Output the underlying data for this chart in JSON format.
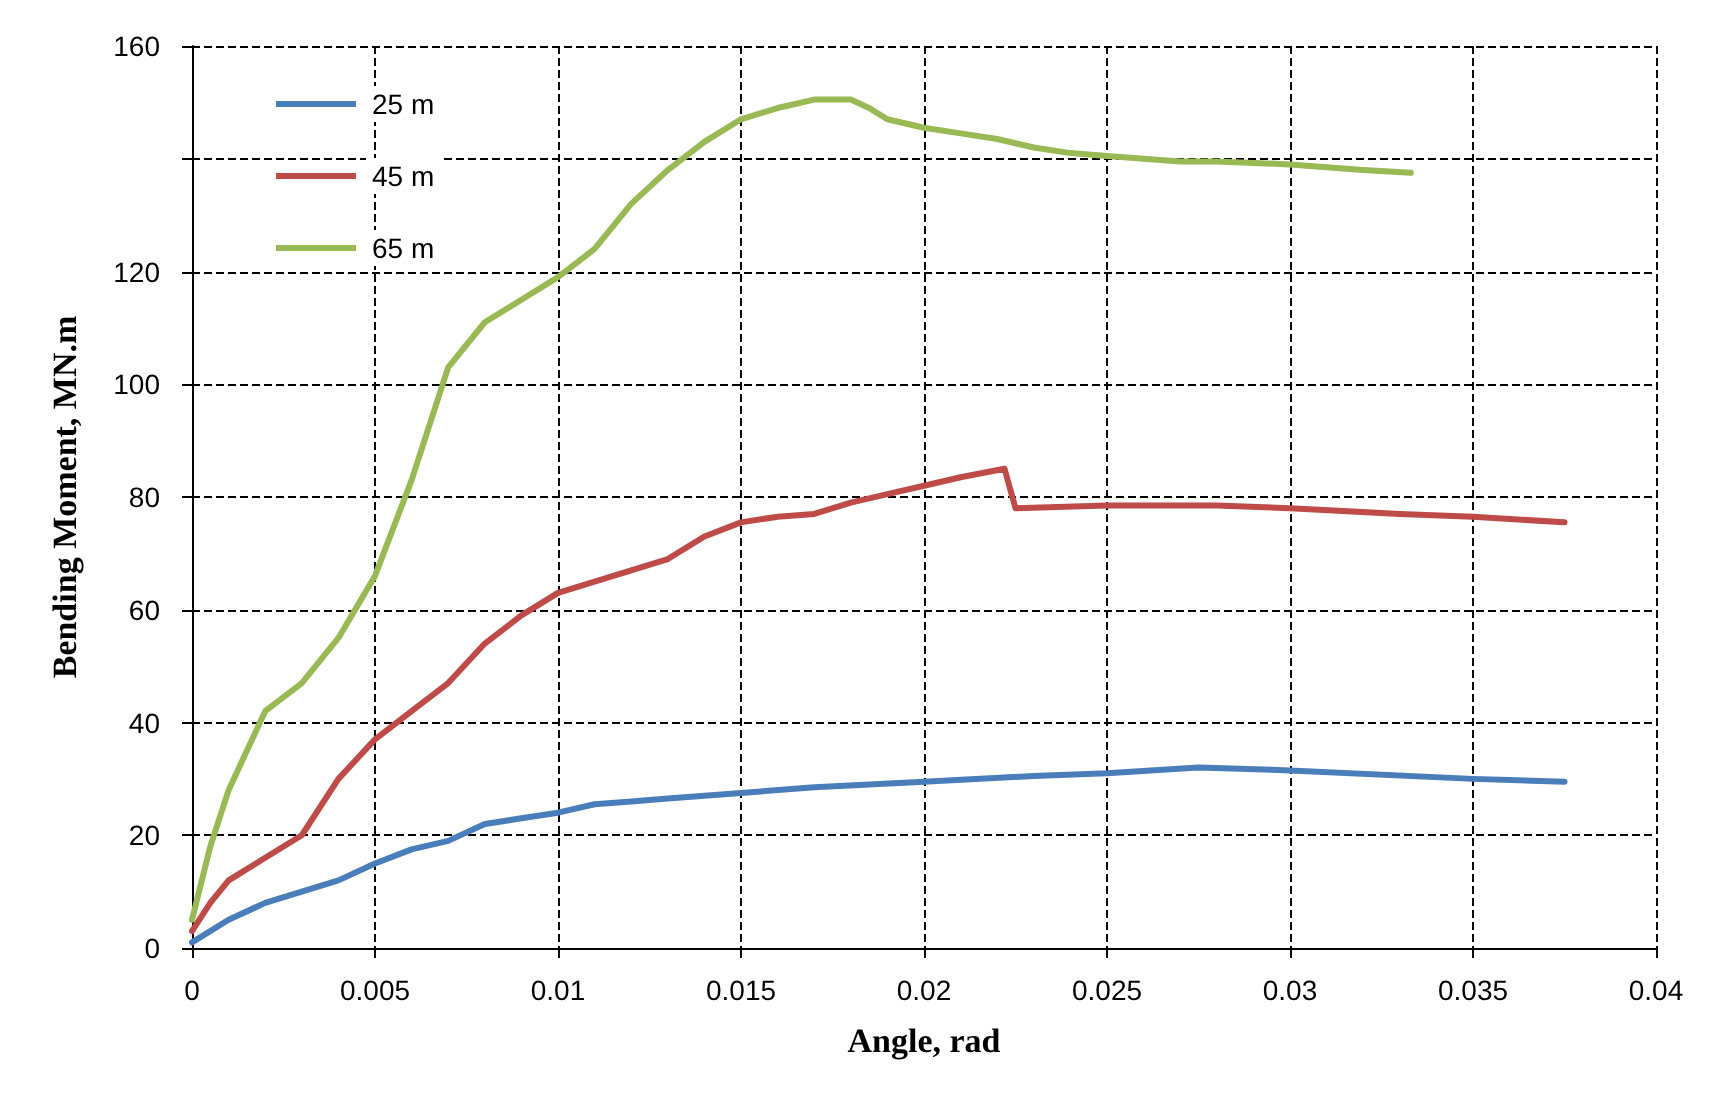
{
  "chart_data": {
    "type": "line",
    "xlabel": "Angle, rad",
    "ylabel": "Bending Moment, MN.m",
    "xlim": [
      0,
      0.04
    ],
    "xticks": [
      0,
      0.005,
      0.01,
      0.015,
      0.02,
      0.025,
      0.03,
      0.035,
      0.04
    ],
    "ylim": [
      0,
      160
    ],
    "yticks": [
      0,
      20,
      40,
      60,
      80,
      100,
      120,
      {
        "value": 140,
        "label": null
      },
      160
    ],
    "grid": true,
    "legend": "top left",
    "marker": "none",
    "line_style": "solid",
    "series": [
      {
        "name": "25 m",
        "color": "#4a7ebb",
        "x": [
          0,
          0.001,
          0.002,
          0.003,
          0.004,
          0.005,
          0.006,
          0.007,
          0.008,
          0.009,
          0.01,
          0.011,
          0.012,
          0.013,
          0.014,
          0.015,
          0.017,
          0.02,
          0.023,
          0.025,
          0.0275,
          0.03,
          0.035,
          0.0375
        ],
        "values": [
          1,
          5,
          8,
          10,
          12,
          15,
          17.5,
          19,
          22,
          23,
          24,
          25.5,
          26,
          26.5,
          27,
          27.5,
          28.5,
          29.5,
          30.5,
          31,
          32,
          31.5,
          30,
          29.5
        ]
      },
      {
        "name": "45 m",
        "color": "#be4b48",
        "x": [
          0,
          0.0005,
          0.001,
          0.002,
          0.003,
          0.004,
          0.005,
          0.006,
          0.007,
          0.008,
          0.009,
          0.01,
          0.011,
          0.012,
          0.013,
          0.014,
          0.015,
          0.016,
          0.017,
          0.018,
          0.019,
          0.02,
          0.021,
          0.0222,
          0.0225,
          0.025,
          0.028,
          0.03,
          0.033,
          0.035,
          0.0375
        ],
        "values": [
          3,
          8,
          12,
          16,
          20,
          30,
          37,
          42,
          47,
          54,
          59,
          63,
          65,
          67,
          69,
          73,
          75.5,
          76.5,
          77,
          79,
          80.5,
          82,
          83.5,
          85,
          78,
          78.5,
          78.5,
          78,
          77,
          76.5,
          75.5
        ]
      },
      {
        "name": "65 m",
        "color": "#98b954",
        "x": [
          0,
          0.0005,
          0.001,
          0.002,
          0.003,
          0.004,
          0.005,
          0.006,
          0.007,
          0.008,
          0.009,
          0.01,
          0.011,
          0.012,
          0.013,
          0.014,
          0.015,
          0.016,
          0.017,
          0.018,
          0.0185,
          0.019,
          0.02,
          0.021,
          0.022,
          0.023,
          0.024,
          0.025,
          0.026,
          0.027,
          0.028,
          0.03,
          0.032,
          0.0333
        ],
        "values": [
          5,
          18,
          28,
          42,
          47,
          55,
          66,
          83,
          103,
          111,
          115,
          119,
          124,
          132,
          138,
          143,
          147,
          149,
          150.5,
          150.5,
          149,
          147,
          145.5,
          144.5,
          143.5,
          142,
          141,
          140.5,
          140,
          139.5,
          139.5,
          139,
          138,
          137.5
        ]
      }
    ]
  }
}
